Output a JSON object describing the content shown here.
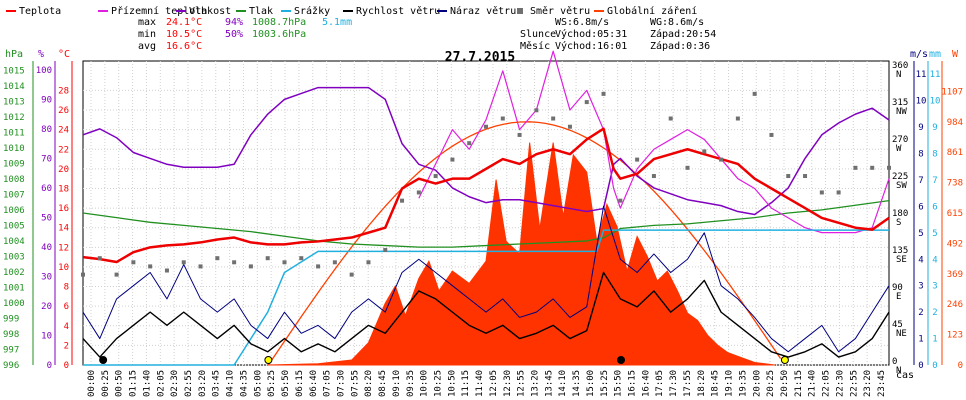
{
  "chart_data": {
    "type": "line",
    "title": "27.7.2015",
    "xlabel": "čas",
    "legend": [
      {
        "name": "Teplota",
        "color": "#ff0000"
      },
      {
        "name": "Přízemní teplota",
        "color": "#e020e0"
      },
      {
        "name": "Vlhkost",
        "color": "#8000c0"
      },
      {
        "name": "Tlak",
        "color": "#209020"
      },
      {
        "name": "Srážky",
        "color": "#20b0e0"
      },
      {
        "name": "Rychlost větru",
        "color": "#000000"
      },
      {
        "name": "Náraz větru",
        "color": "#000080"
      },
      {
        "name": "Směr větru",
        "color": "#707070"
      },
      {
        "name": "Globální záření",
        "color": "#ff4000"
      }
    ],
    "stats": {
      "max_label": "max",
      "max_temp": "24.1°C",
      "max_hum": "94%",
      "max_press": "1008.7hPa",
      "max_rain": "5.1mm",
      "min_label": "min",
      "min_temp": "10.5°C",
      "min_hum": "50%",
      "min_press": "1003.6hPa",
      "avg_label": "avg",
      "avg_temp": "16.6°C",
      "ws": "WS:6.8m/s",
      "wg": "WG:8.6m/s",
      "sun_label": "Slunce",
      "sun_rise": "Východ:05:31",
      "sun_set": "Západ:20:54",
      "moon_label": "Měsíc",
      "moon_rise": "Východ:16:01",
      "moon_set": "Západ:0:36"
    },
    "axes": {
      "hpa_unit": "hPa",
      "pct_unit": "%",
      "c_unit": "°C",
      "ms_unit": "m/s",
      "mm_unit": "mm",
      "w_unit": "W",
      "hpa_ticks": [
        996,
        997,
        998,
        999,
        1000,
        1001,
        1002,
        1003,
        1004,
        1005,
        1006,
        1007,
        1008,
        1009,
        1010,
        1011,
        1012,
        1013,
        1014,
        1015
      ],
      "pct_ticks": [
        0,
        10,
        20,
        30,
        40,
        50,
        60,
        70,
        80,
        90,
        100
      ],
      "c_ticks": [
        0,
        2,
        4,
        6,
        8,
        10,
        12,
        14,
        16,
        18,
        20,
        22,
        24,
        26,
        28
      ],
      "dir_ticks": [
        {
          "deg": "0",
          "lab": "N"
        },
        {
          "deg": "45",
          "lab": "NE"
        },
        {
          "deg": "90",
          "lab": "E"
        },
        {
          "deg": "135",
          "lab": "SE"
        },
        {
          "deg": "180",
          "lab": "S"
        },
        {
          "deg": "225",
          "lab": "SW"
        },
        {
          "deg": "270",
          "lab": "W"
        },
        {
          "deg": "315",
          "lab": "NW"
        },
        {
          "deg": "360",
          "lab": "N"
        }
      ],
      "ms_ticks": [
        0,
        1,
        2,
        3,
        4,
        5,
        6,
        7,
        8,
        9,
        10,
        11
      ],
      "w_ticks": [
        0,
        123,
        246,
        369,
        492,
        615,
        738,
        861,
        984,
        1107
      ],
      "time_labels": [
        "00:00",
        "00:25",
        "00:50",
        "01:15",
        "01:40",
        "02:05",
        "02:30",
        "02:55",
        "03:20",
        "03:45",
        "04:10",
        "04:35",
        "05:00",
        "05:25",
        "05:50",
        "06:15",
        "06:40",
        "07:05",
        "07:30",
        "07:55",
        "08:20",
        "08:45",
        "09:10",
        "09:35",
        "10:00",
        "10:25",
        "10:50",
        "11:15",
        "11:40",
        "12:05",
        "12:30",
        "12:55",
        "13:20",
        "13:45",
        "14:10",
        "14:35",
        "15:00",
        "15:25",
        "15:50",
        "16:15",
        "16:40",
        "17:05",
        "17:30",
        "17:55",
        "18:20",
        "18:45",
        "19:10",
        "19:35",
        "20:00",
        "20:25",
        "20:50",
        "21:15",
        "21:40",
        "22:05",
        "22:30",
        "22:55",
        "23:20",
        "23:45"
      ]
    },
    "xlim_hours": [
      0,
      24
    ],
    "temperature": [
      [
        0,
        11.0
      ],
      [
        0.5,
        10.8
      ],
      [
        1,
        10.5
      ],
      [
        1.5,
        11.5
      ],
      [
        2,
        12.0
      ],
      [
        2.5,
        12.2
      ],
      [
        3,
        12.3
      ],
      [
        3.5,
        12.5
      ],
      [
        4,
        12.8
      ],
      [
        4.5,
        13.0
      ],
      [
        5,
        12.5
      ],
      [
        5.5,
        12.3
      ],
      [
        6,
        12.3
      ],
      [
        6.5,
        12.5
      ],
      [
        7,
        12.6
      ],
      [
        7.5,
        12.8
      ],
      [
        8,
        13.0
      ],
      [
        8.5,
        13.5
      ],
      [
        9,
        14.0
      ],
      [
        9.5,
        18.0
      ],
      [
        10,
        19.0
      ],
      [
        10.5,
        18.5
      ],
      [
        11,
        19.0
      ],
      [
        11.5,
        19.0
      ],
      [
        12,
        20.0
      ],
      [
        12.5,
        21.0
      ],
      [
        13,
        20.5
      ],
      [
        13.5,
        21.5
      ],
      [
        14,
        22.0
      ],
      [
        14.5,
        21.5
      ],
      [
        15,
        23.0
      ],
      [
        15.5,
        24.1
      ],
      [
        15.8,
        20.0
      ],
      [
        16,
        19.0
      ],
      [
        16.5,
        19.5
      ],
      [
        17,
        21.0
      ],
      [
        17.5,
        21.5
      ],
      [
        18,
        22.0
      ],
      [
        18.5,
        21.5
      ],
      [
        19,
        21.0
      ],
      [
        19.5,
        20.5
      ],
      [
        20,
        19.0
      ],
      [
        20.5,
        18.0
      ],
      [
        21,
        17.0
      ],
      [
        21.5,
        16.0
      ],
      [
        22,
        15.0
      ],
      [
        22.5,
        14.5
      ],
      [
        23,
        14.0
      ],
      [
        23.5,
        13.8
      ],
      [
        24,
        15.0
      ]
    ],
    "ground_temp": [
      [
        10,
        17.0
      ],
      [
        11,
        24.0
      ],
      [
        11.5,
        22.0
      ],
      [
        12,
        25.0
      ],
      [
        12.5,
        30.0
      ],
      [
        13,
        24.0
      ],
      [
        13.5,
        26.0
      ],
      [
        14,
        32.0
      ],
      [
        14.5,
        26.0
      ],
      [
        15,
        28.0
      ],
      [
        15.5,
        24.0
      ],
      [
        15.8,
        18.0
      ],
      [
        16,
        16.0
      ],
      [
        16.5,
        20.0
      ],
      [
        17,
        22.0
      ],
      [
        17.5,
        23.0
      ],
      [
        18,
        24.0
      ],
      [
        18.5,
        23.0
      ],
      [
        19,
        21.0
      ],
      [
        19.5,
        19.0
      ],
      [
        20,
        18.0
      ],
      [
        20.5,
        16.0
      ],
      [
        21,
        15.0
      ],
      [
        21.5,
        14.0
      ],
      [
        22,
        13.5
      ],
      [
        22.5,
        13.5
      ],
      [
        23,
        13.5
      ],
      [
        23.5,
        14.0
      ],
      [
        24,
        19.0
      ]
    ],
    "humidity": [
      [
        0,
        78
      ],
      [
        0.5,
        80
      ],
      [
        1,
        77
      ],
      [
        1.5,
        72
      ],
      [
        2,
        70
      ],
      [
        2.5,
        68
      ],
      [
        3,
        67
      ],
      [
        3.5,
        67
      ],
      [
        4,
        67
      ],
      [
        4.5,
        68
      ],
      [
        5,
        78
      ],
      [
        5.5,
        85
      ],
      [
        6,
        90
      ],
      [
        6.5,
        92
      ],
      [
        7,
        94
      ],
      [
        7.5,
        94
      ],
      [
        8,
        94
      ],
      [
        8.5,
        94
      ],
      [
        9,
        90
      ],
      [
        9.5,
        75
      ],
      [
        10,
        68
      ],
      [
        10.5,
        66
      ],
      [
        11,
        60
      ],
      [
        11.5,
        57
      ],
      [
        12,
        55
      ],
      [
        12.5,
        56
      ],
      [
        13,
        56
      ],
      [
        13.5,
        55
      ],
      [
        14,
        54
      ],
      [
        14.5,
        53
      ],
      [
        15,
        52
      ],
      [
        15.5,
        53
      ],
      [
        15.8,
        68
      ],
      [
        16,
        70
      ],
      [
        16.5,
        64
      ],
      [
        17,
        60
      ],
      [
        17.5,
        58
      ],
      [
        18,
        56
      ],
      [
        18.5,
        55
      ],
      [
        19,
        54
      ],
      [
        19.5,
        52
      ],
      [
        20,
        51
      ],
      [
        20.5,
        55
      ],
      [
        21,
        60
      ],
      [
        21.5,
        70
      ],
      [
        22,
        78
      ],
      [
        22.5,
        82
      ],
      [
        23,
        85
      ],
      [
        23.5,
        87
      ],
      [
        24,
        83
      ]
    ],
    "pressure": [
      [
        0,
        1005.8
      ],
      [
        1,
        1005.5
      ],
      [
        2,
        1005.2
      ],
      [
        3,
        1005.0
      ],
      [
        4,
        1004.8
      ],
      [
        5,
        1004.6
      ],
      [
        6,
        1004.3
      ],
      [
        7,
        1004.0
      ],
      [
        8,
        1003.8
      ],
      [
        9,
        1003.7
      ],
      [
        10,
        1003.6
      ],
      [
        11,
        1003.6
      ],
      [
        12,
        1003.7
      ],
      [
        13,
        1003.8
      ],
      [
        14,
        1003.9
      ],
      [
        15,
        1004.0
      ],
      [
        15.5,
        1004.2
      ],
      [
        16,
        1004.8
      ],
      [
        17,
        1005.0
      ],
      [
        18,
        1005.1
      ],
      [
        19,
        1005.3
      ],
      [
        20,
        1005.5
      ],
      [
        21,
        1005.8
      ],
      [
        22,
        1006.0
      ],
      [
        23,
        1006.3
      ],
      [
        24,
        1006.6
      ]
    ],
    "rain": [
      [
        0,
        0
      ],
      [
        4.5,
        0
      ],
      [
        5.5,
        2.0
      ],
      [
        6,
        3.5
      ],
      [
        7,
        4.3
      ],
      [
        8,
        4.3
      ],
      [
        15.3,
        4.3
      ],
      [
        15.5,
        5.1
      ],
      [
        24,
        5.1
      ]
    ],
    "wind_speed": [
      [
        0,
        1.0
      ],
      [
        0.5,
        0.3
      ],
      [
        1,
        1.0
      ],
      [
        1.5,
        1.5
      ],
      [
        2,
        2.0
      ],
      [
        2.5,
        1.5
      ],
      [
        3,
        2.0
      ],
      [
        3.5,
        1.5
      ],
      [
        4,
        1.0
      ],
      [
        4.5,
        1.5
      ],
      [
        5,
        0.8
      ],
      [
        5.5,
        0.5
      ],
      [
        6,
        1.0
      ],
      [
        6.5,
        0.5
      ],
      [
        7,
        0.8
      ],
      [
        7.5,
        0.5
      ],
      [
        8,
        1.0
      ],
      [
        8.5,
        1.5
      ],
      [
        9,
        1.2
      ],
      [
        9.5,
        2.0
      ],
      [
        10,
        2.8
      ],
      [
        10.5,
        2.5
      ],
      [
        11,
        2.0
      ],
      [
        11.5,
        1.5
      ],
      [
        12,
        1.2
      ],
      [
        12.5,
        1.5
      ],
      [
        13,
        1.0
      ],
      [
        13.5,
        1.2
      ],
      [
        14,
        1.5
      ],
      [
        14.5,
        1.0
      ],
      [
        15,
        1.3
      ],
      [
        15.5,
        3.5
      ],
      [
        16,
        2.5
      ],
      [
        16.5,
        2.2
      ],
      [
        17,
        2.8
      ],
      [
        17.5,
        2.0
      ],
      [
        18,
        2.5
      ],
      [
        18.5,
        3.2
      ],
      [
        19,
        2.0
      ],
      [
        19.5,
        1.5
      ],
      [
        20,
        1.0
      ],
      [
        20.5,
        0.5
      ],
      [
        21,
        0.3
      ],
      [
        21.5,
        0.5
      ],
      [
        22,
        0.8
      ],
      [
        22.5,
        0.3
      ],
      [
        23,
        0.5
      ],
      [
        23.5,
        1.0
      ],
      [
        24,
        2.0
      ]
    ],
    "wind_gust": [
      [
        0,
        2.0
      ],
      [
        0.5,
        1.0
      ],
      [
        1,
        2.5
      ],
      [
        1.5,
        3.0
      ],
      [
        2,
        3.5
      ],
      [
        2.5,
        2.5
      ],
      [
        3,
        3.8
      ],
      [
        3.5,
        2.5
      ],
      [
        4,
        2.0
      ],
      [
        4.5,
        2.5
      ],
      [
        5,
        1.5
      ],
      [
        5.5,
        1.0
      ],
      [
        6,
        2.0
      ],
      [
        6.5,
        1.2
      ],
      [
        7,
        1.5
      ],
      [
        7.5,
        1.0
      ],
      [
        8,
        2.0
      ],
      [
        8.5,
        2.5
      ],
      [
        9,
        2.0
      ],
      [
        9.5,
        3.5
      ],
      [
        10,
        4.0
      ],
      [
        10.5,
        3.5
      ],
      [
        11,
        3.0
      ],
      [
        11.5,
        2.5
      ],
      [
        12,
        2.0
      ],
      [
        12.5,
        2.5
      ],
      [
        13,
        1.8
      ],
      [
        13.5,
        2.0
      ],
      [
        14,
        2.5
      ],
      [
        14.5,
        1.8
      ],
      [
        15,
        2.2
      ],
      [
        15.5,
        6.0
      ],
      [
        16,
        4.0
      ],
      [
        16.5,
        3.5
      ],
      [
        17,
        4.2
      ],
      [
        17.5,
        3.5
      ],
      [
        18,
        4.0
      ],
      [
        18.5,
        5.0
      ],
      [
        19,
        3.0
      ],
      [
        19.5,
        2.5
      ],
      [
        20,
        1.8
      ],
      [
        20.5,
        1.0
      ],
      [
        21,
        0.5
      ],
      [
        21.5,
        1.0
      ],
      [
        22,
        1.5
      ],
      [
        22.5,
        0.5
      ],
      [
        23,
        1.0
      ],
      [
        23.5,
        2.0
      ],
      [
        24,
        3.0
      ]
    ],
    "wind_dir": [
      [
        0,
        110
      ],
      [
        0.5,
        130
      ],
      [
        1,
        110
      ],
      [
        1.5,
        125
      ],
      [
        2,
        120
      ],
      [
        2.5,
        115
      ],
      [
        3,
        125
      ],
      [
        3.5,
        120
      ],
      [
        4,
        130
      ],
      [
        4.5,
        125
      ],
      [
        5,
        120
      ],
      [
        5.5,
        130
      ],
      [
        6,
        125
      ],
      [
        6.5,
        130
      ],
      [
        7,
        120
      ],
      [
        7.5,
        125
      ],
      [
        8,
        110
      ],
      [
        8.5,
        125
      ],
      [
        9,
        140
      ],
      [
        9.5,
        200
      ],
      [
        10,
        210
      ],
      [
        10.5,
        230
      ],
      [
        11,
        250
      ],
      [
        11.5,
        270
      ],
      [
        12,
        290
      ],
      [
        12.5,
        300
      ],
      [
        13,
        280
      ],
      [
        13.5,
        310
      ],
      [
        14,
        300
      ],
      [
        14.5,
        290
      ],
      [
        15,
        320
      ],
      [
        15.5,
        330
      ],
      [
        16,
        200
      ],
      [
        16.5,
        250
      ],
      [
        17,
        230
      ],
      [
        17.5,
        300
      ],
      [
        18,
        240
      ],
      [
        18.5,
        260
      ],
      [
        19,
        250
      ],
      [
        19.5,
        300
      ],
      [
        20,
        330
      ],
      [
        20.5,
        280
      ],
      [
        21,
        230
      ],
      [
        21.5,
        230
      ],
      [
        22,
        210
      ],
      [
        22.5,
        210
      ],
      [
        23,
        240
      ],
      [
        23.5,
        240
      ],
      [
        24,
        240
      ]
    ],
    "radiation": [
      [
        5.5,
        0
      ],
      [
        7,
        5
      ],
      [
        8,
        20
      ],
      [
        8.5,
        90
      ],
      [
        9,
        250
      ],
      [
        9.3,
        320
      ],
      [
        9.6,
        200
      ],
      [
        10,
        350
      ],
      [
        10.3,
        420
      ],
      [
        10.6,
        300
      ],
      [
        11,
        380
      ],
      [
        11.5,
        330
      ],
      [
        12,
        420
      ],
      [
        12.3,
        750
      ],
      [
        12.6,
        500
      ],
      [
        13,
        450
      ],
      [
        13.3,
        900
      ],
      [
        13.6,
        550
      ],
      [
        14,
        900
      ],
      [
        14.3,
        600
      ],
      [
        14.6,
        850
      ],
      [
        15,
        780
      ],
      [
        15.3,
        500
      ],
      [
        15.6,
        650
      ],
      [
        15.9,
        560
      ],
      [
        16.2,
        380
      ],
      [
        16.5,
        520
      ],
      [
        16.8,
        440
      ],
      [
        17.1,
        340
      ],
      [
        17.4,
        380
      ],
      [
        17.7,
        300
      ],
      [
        18,
        210
      ],
      [
        18.3,
        180
      ],
      [
        18.6,
        120
      ],
      [
        18.9,
        80
      ],
      [
        19.2,
        50
      ],
      [
        19.5,
        35
      ],
      [
        20,
        10
      ],
      [
        20.6,
        0
      ]
    ],
    "theoretical_radiation_peak": 984,
    "sunrise_hour": 5.52,
    "sunset_hour": 20.9,
    "moonrise_hour": 16.02,
    "moonset_hour": 0.6
  }
}
